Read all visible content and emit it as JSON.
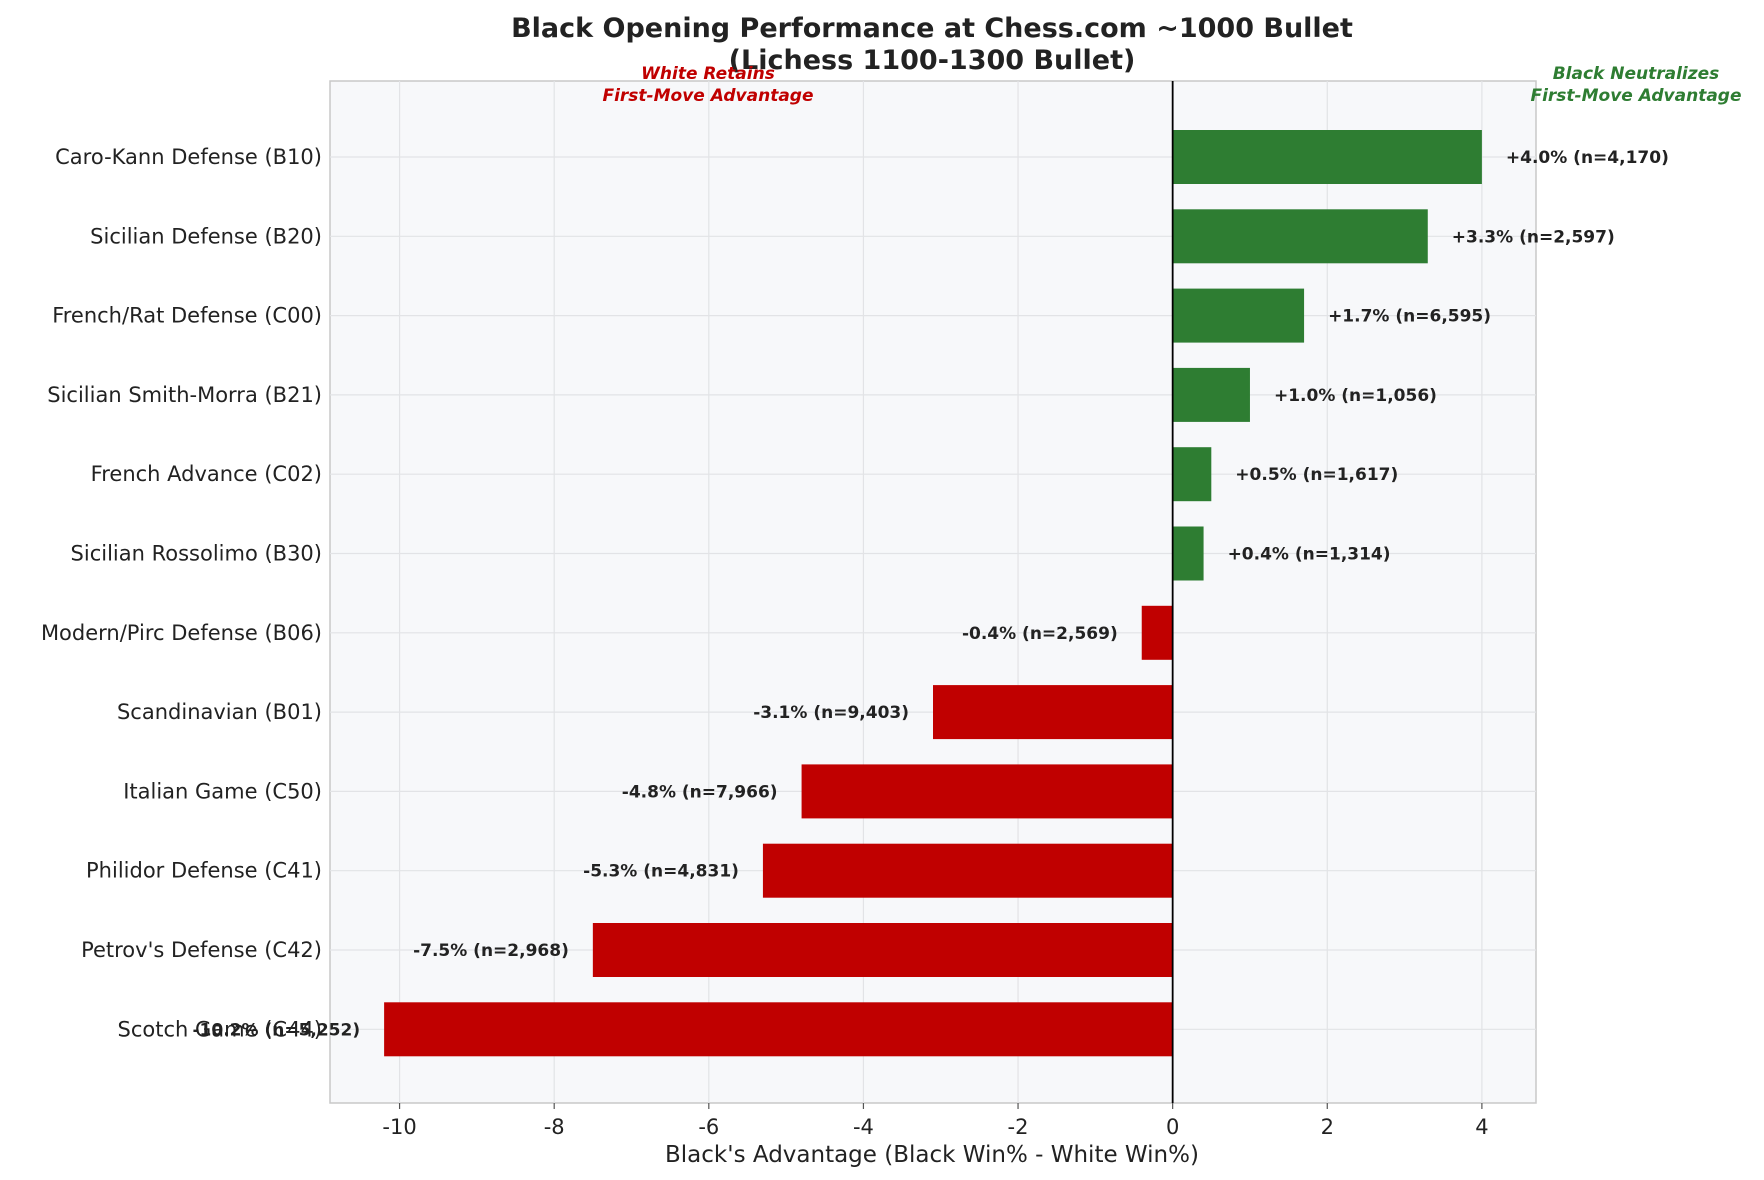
{
  "chart_data": {
    "type": "bar",
    "orientation": "horizontal",
    "title_line1": "Black Opening Performance at Chess.com ~1000 Bullet",
    "title_line2": "(Lichess 1100-1300 Bullet)",
    "xlabel": "Black's Advantage (Black Win% - White Win%)",
    "xlim": [
      -10.9,
      4.7
    ],
    "xticks": [
      -10,
      -8,
      -6,
      -4,
      -2,
      0,
      2,
      4
    ],
    "grid": true,
    "negative_color": "#c00000",
    "positive_color": "#2e7d32",
    "left_annotation": {
      "line1": "White Retains",
      "line2": "First-Move Advantage",
      "color": "#c00000"
    },
    "right_annotation": {
      "line1": "Black Neutralizes",
      "line2": "First-Move Advantage",
      "color": "#2e7d32"
    },
    "categories": [
      "Caro-Kann Defense (B10)",
      "Sicilian Defense (B20)",
      "French/Rat Defense (C00)",
      "Sicilian Smith-Morra (B21)",
      "French Advance (C02)",
      "Sicilian Rossolimo (B30)",
      "Modern/Pirc Defense (B06)",
      "Scandinavian (B01)",
      "Italian Game (C50)",
      "Philidor Defense (C41)",
      "Petrov's Defense (C42)",
      "Scotch Game (C44)"
    ],
    "values": [
      4.0,
      3.3,
      1.7,
      1.0,
      0.5,
      0.4,
      -0.4,
      -3.1,
      -4.8,
      -5.3,
      -7.5,
      -10.2
    ],
    "value_labels": [
      "+4.0% (n=4,170)",
      "+3.3% (n=2,597)",
      "+1.7% (n=6,595)",
      "+1.0% (n=1,056)",
      "+0.5% (n=1,617)",
      "+0.4% (n=1,314)",
      "-0.4% (n=2,569)",
      "-3.1% (n=9,403)",
      "-4.8% (n=7,966)",
      "-5.3% (n=4,831)",
      "-7.5% (n=2,968)",
      "-10.2% (n=5,252)"
    ]
  }
}
